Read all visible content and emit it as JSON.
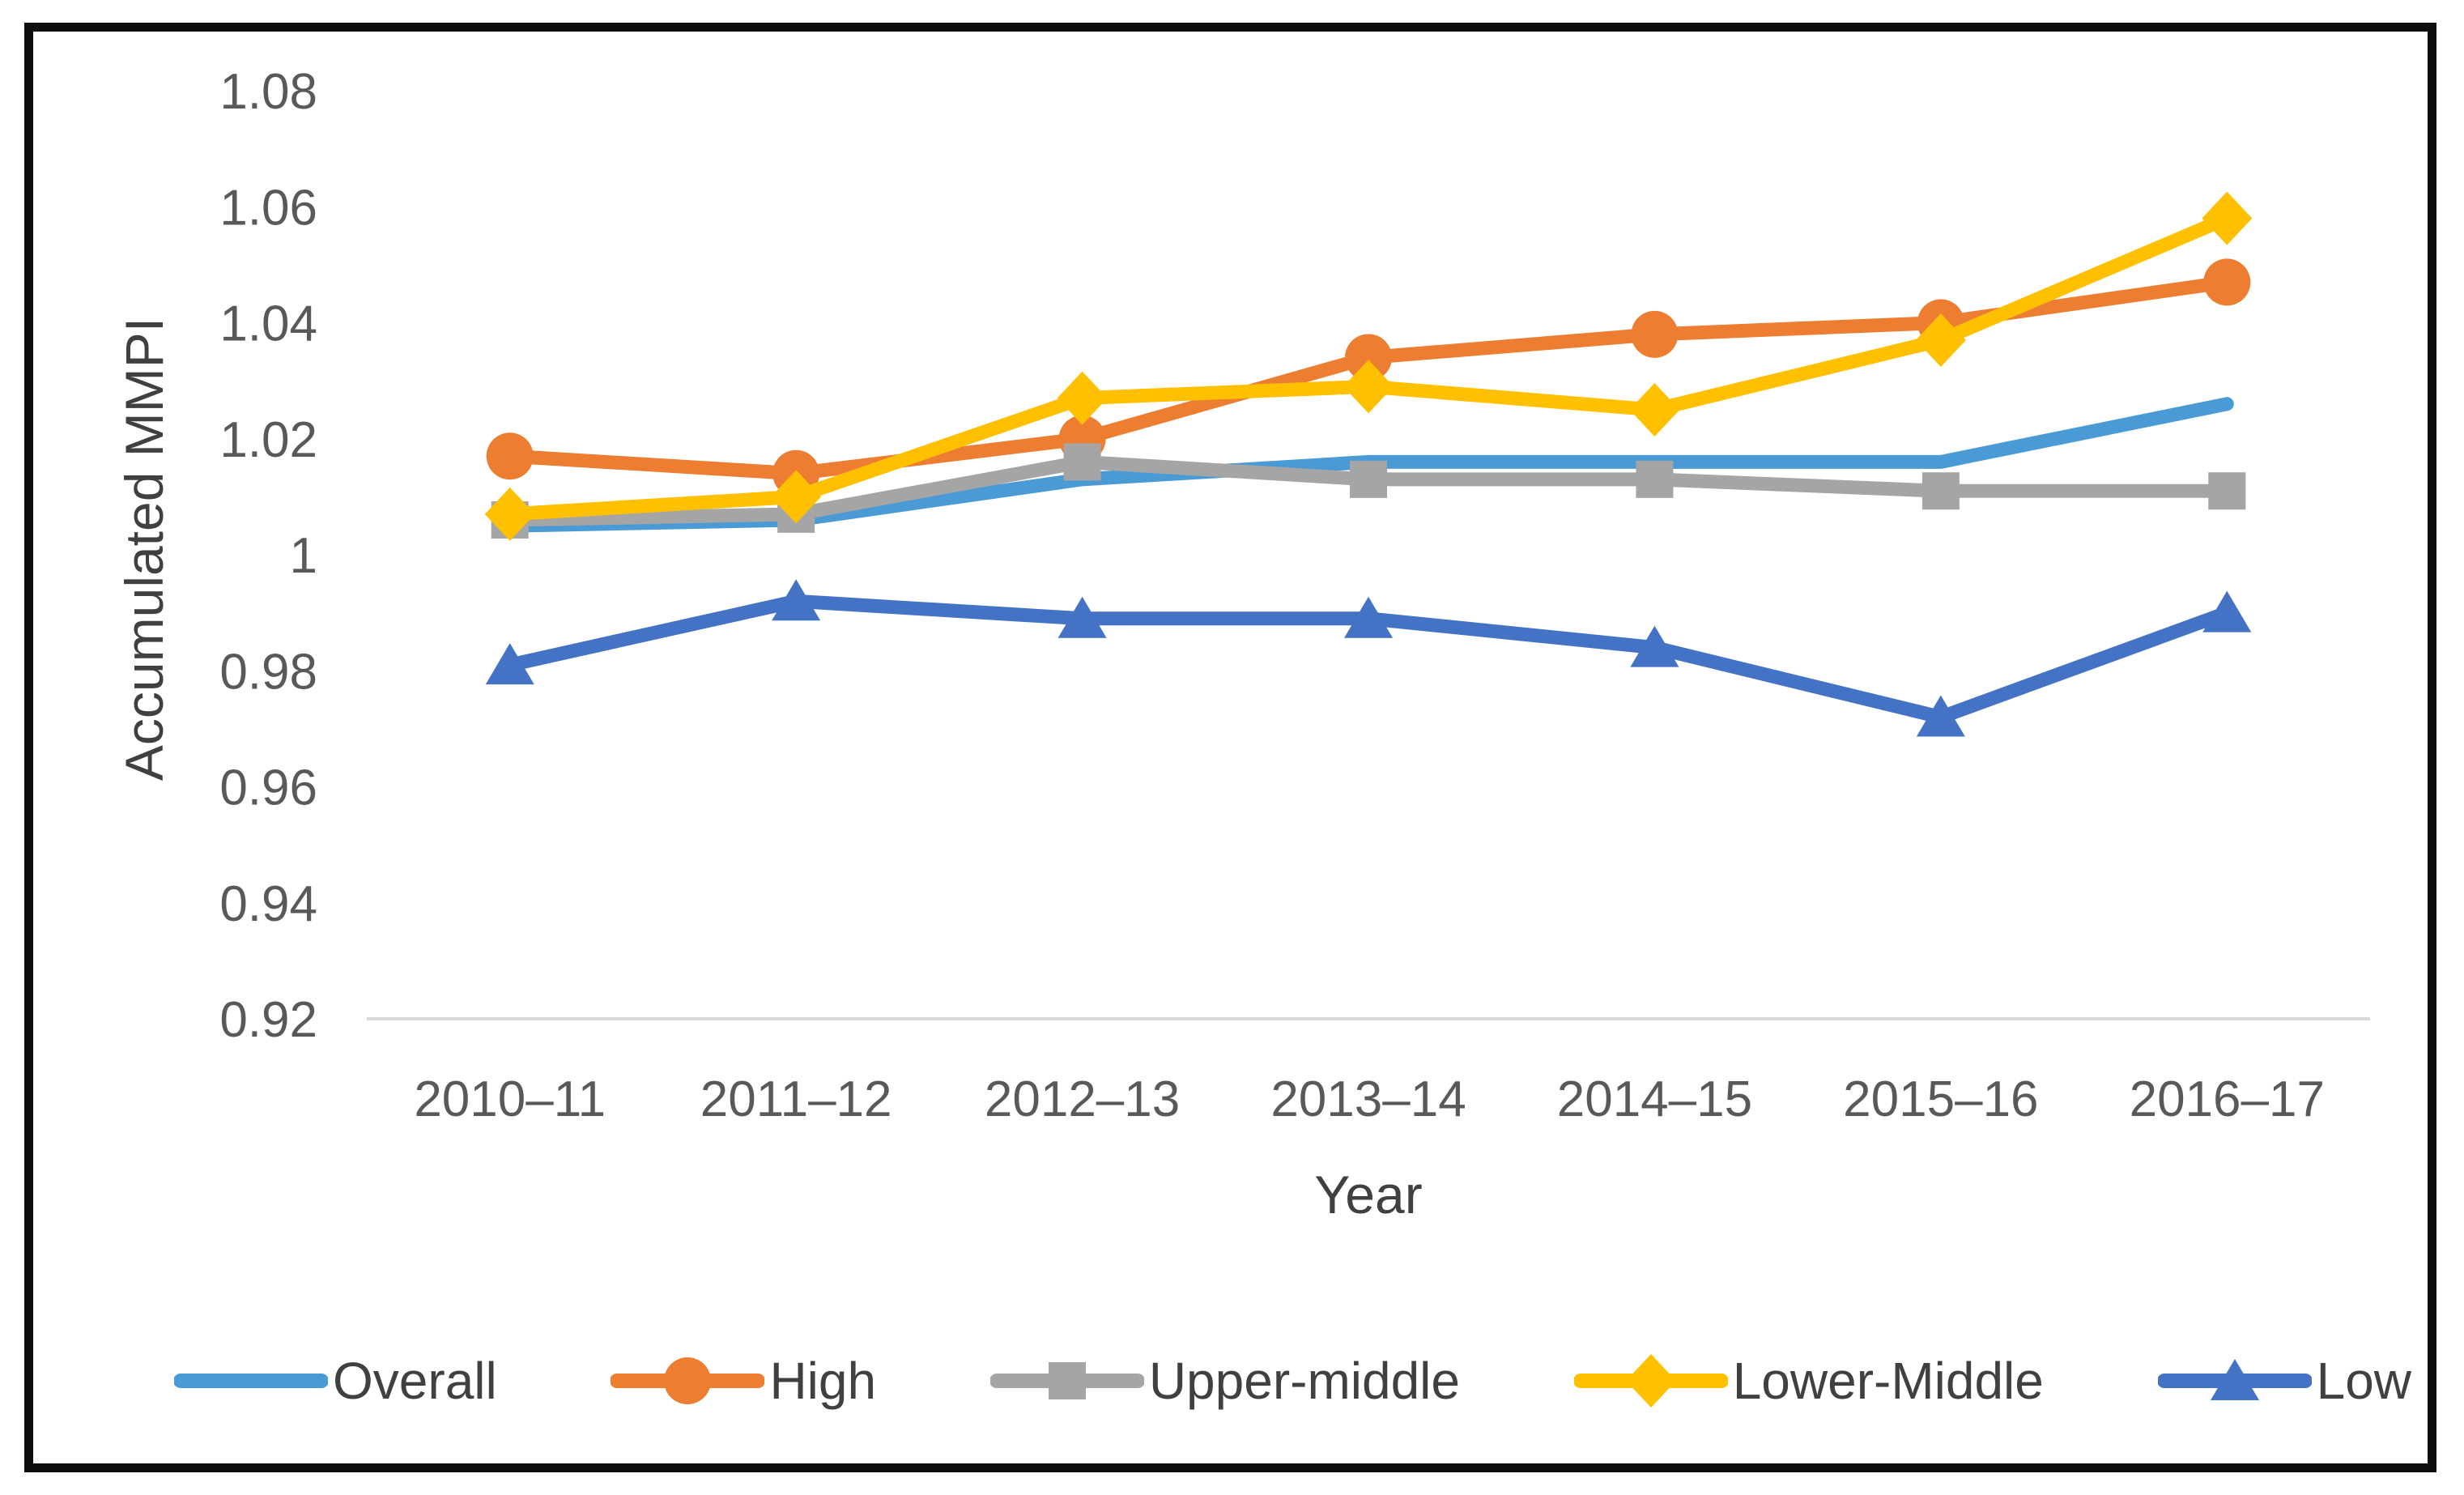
{
  "chart_data": {
    "type": "line",
    "title": "",
    "xlabel": "Year",
    "ylabel": "Accumulated MMPI",
    "categories": [
      "2010–11",
      "2011–12",
      "2012–13",
      "2013–14",
      "2014–15",
      "2015–16",
      "2016–17"
    ],
    "y_ticks": [
      "1.08",
      "1.06",
      "1.04",
      "1.02",
      "1",
      "0.98",
      "0.96",
      "0.94",
      "0.92"
    ],
    "ylim": [
      0.92,
      1.08
    ],
    "grid": false,
    "legend_position": "bottom",
    "axis_line_color": "#d9d9d9",
    "series": [
      {
        "name": "Overall",
        "color": "#4a9bd5",
        "marker": "none",
        "values": [
          1.005,
          1.006,
          1.013,
          1.016,
          1.016,
          1.016,
          1.026
        ]
      },
      {
        "name": "High",
        "color": "#ed7d31",
        "marker": "circle",
        "values": [
          1.017,
          1.014,
          1.02,
          1.034,
          1.038,
          1.04,
          1.047
        ]
      },
      {
        "name": "Upper-middle",
        "color": "#a5a5a5",
        "marker": "square",
        "values": [
          1.006,
          1.007,
          1.016,
          1.013,
          1.013,
          1.011,
          1.011
        ]
      },
      {
        "name": "Lower-Middle",
        "color": "#ffc000",
        "marker": "diamond",
        "values": [
          1.007,
          1.01,
          1.027,
          1.029,
          1.025,
          1.037,
          1.058
        ]
      },
      {
        "name": "Low",
        "color": "#4472c4",
        "marker": "triangle",
        "values": [
          0.981,
          0.992,
          0.989,
          0.989,
          0.984,
          0.972,
          0.99
        ]
      }
    ]
  }
}
